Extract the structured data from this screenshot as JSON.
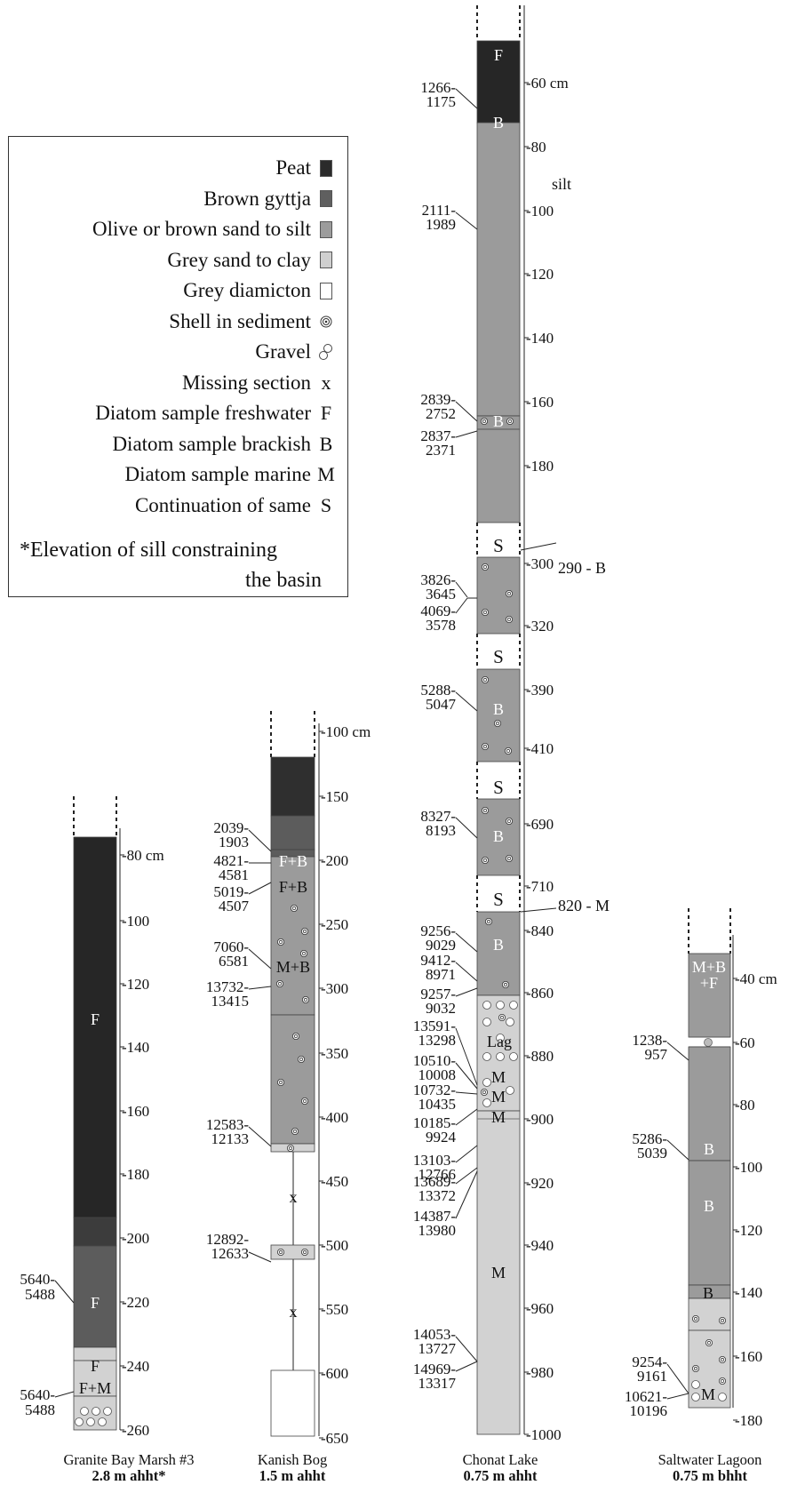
{
  "legend": {
    "items": [
      {
        "label": "Peat",
        "symbol": "peat",
        "color": "#2b2b2b"
      },
      {
        "label": "Brown gyttja",
        "symbol": "gyttja",
        "color": "#5f5f5f"
      },
      {
        "label": "Olive or brown sand to silt",
        "symbol": "sandsilt",
        "color": "#9c9c9c"
      },
      {
        "label": "Grey sand to clay",
        "symbol": "sandclay",
        "color": "#cfcfcf"
      },
      {
        "label": "Grey diamicton",
        "symbol": "diamicton",
        "color": "#ffffff"
      },
      {
        "label": "Shell in sediment",
        "symbol": "shell"
      },
      {
        "label": "Gravel",
        "symbol": "gravel"
      },
      {
        "label": "Missing section",
        "symbol": "text",
        "text": "x"
      },
      {
        "label": "Diatom sample freshwater",
        "symbol": "text",
        "text": "F"
      },
      {
        "label": "Diatom sample brackish",
        "symbol": "text",
        "text": "B"
      },
      {
        "label": "Diatom sample marine",
        "symbol": "text",
        "text": "M"
      },
      {
        "label": "Continuation of same",
        "symbol": "text",
        "text": "S"
      }
    ],
    "note_line1": "*Elevation of sill constraining",
    "note_line2": "the basin"
  },
  "cores": [
    {
      "id": "granite-bay",
      "name": "Granite Bay Marsh #3",
      "elevation": "2.8 m ahht*",
      "ticks": [
        "-80 cm",
        "-100",
        "-120",
        "-140",
        "-160",
        "-180",
        "-200",
        "-220",
        "-240",
        "-260"
      ],
      "extras": [],
      "units": [
        "Peat: 80–200 cm",
        "Brown gyttja: 200–208 cm",
        "Olive/brown sand to silt: 208–234 cm",
        "Grey sand to clay: 234–240 cm",
        "Gravel: 253–260 cm"
      ],
      "diatom_labels": [
        "F",
        "F",
        "F",
        "F+M"
      ],
      "ages": [
        "5640-",
        "5488",
        "5640-",
        "5488"
      ]
    },
    {
      "id": "kanish",
      "name": "Kanish Bog",
      "elevation": "1.5 m ahht",
      "ticks": [
        "-100 cm",
        "-150",
        "-200",
        "-250",
        "-300",
        "-350",
        "-400",
        "-450",
        "-500",
        "-550",
        "-600",
        "-650"
      ],
      "extras": [],
      "units": [
        "Peat: 120–165 cm",
        "Brown gyttja: 165–200 cm",
        "Olive/brown sand to silt with shell: 200–420 cm",
        "Shell/gravel: 420–423 cm",
        "Missing: 423–493 cm",
        "Shell: 493–505 cm",
        "Missing: 505–600 cm",
        "Grey diamicton: 600–650 cm"
      ],
      "diatom_labels": [
        "F+B",
        "F+B",
        "M+B",
        "x",
        "x"
      ],
      "ages": [
        "2039-",
        "1903",
        "4821-",
        "4581",
        "5019-",
        "4507",
        "7060-",
        "6581",
        "13732-",
        "13415",
        "12583-",
        "12133",
        "12892-",
        "12633"
      ]
    },
    {
      "id": "chonat",
      "name": "Chonat Lake",
      "elevation": "0.75 m ahht",
      "ticks": [
        "-60 cm",
        "-80",
        "-100",
        "-120",
        "-140",
        "-160",
        "-180",
        "-300",
        "-320",
        "-390",
        "-410",
        "-690",
        "-710",
        "-840",
        "-860",
        "-880",
        "-900",
        "-920",
        "-940",
        "-960",
        "-980",
        "-1000"
      ],
      "extras": [
        "silt",
        "290 - B",
        "820 - M",
        "S",
        "S",
        "S",
        "S"
      ],
      "units": [
        "Peat: 50–75 cm",
        "Olive/brown sand to silt: 75–200 cm",
        "Olive/brown sand to silt with shell: 290–322 cm",
        "Olive/brown sand to silt with shell: 386–413 cm",
        "Olive/brown sand to silt with shell: 688–712 cm",
        "Olive/brown sand to silt with shell: 820–863 cm",
        "Grey sand to clay with gravel (lag): 863–900 cm",
        "Grey sand to clay: 900–1000 cm"
      ],
      "diatom_labels": [
        "F",
        "B",
        "B",
        "B",
        "B",
        "B",
        "Lag",
        "M",
        "M",
        "M",
        "M"
      ],
      "ages": [
        "1266-",
        "1175",
        "2111-",
        "1989",
        "2839-",
        "2752",
        "2837-",
        "2371",
        "3826-",
        "3645",
        "4069-",
        "3578",
        "5288-",
        "5047",
        "8327-",
        "8193",
        "9256-",
        "9029",
        "9412-",
        "8971",
        "9257-",
        "9032",
        "13591-",
        "13298",
        "10510-",
        "10008",
        "10732-",
        "10435",
        "10185-",
        "9924",
        "13103-",
        "12766",
        "13689-",
        "13372",
        "14387-",
        "13980",
        "14053-",
        "13727",
        "14969-",
        "13317"
      ]
    },
    {
      "id": "saltwater",
      "name": "Saltwater Lagoon",
      "elevation": "0.75 m bhht",
      "ticks": [
        "-40 cm",
        "-60",
        "-80",
        "-100",
        "-120",
        "-140",
        "-160",
        "-180"
      ],
      "extras": [],
      "units": [
        "Olive/brown sand to silt: 35–140 cm",
        "Grey sand to clay: 140–150 cm",
        "Grey sand to clay with shell and gravel: 150–175 cm"
      ],
      "diatom_labels": [
        "M+B",
        "+F",
        "B",
        "B",
        "B",
        "M"
      ],
      "ages": [
        "1238-",
        "957",
        "5286-",
        "5039",
        "9254-",
        "9161",
        "10621-",
        "10196"
      ]
    }
  ]
}
